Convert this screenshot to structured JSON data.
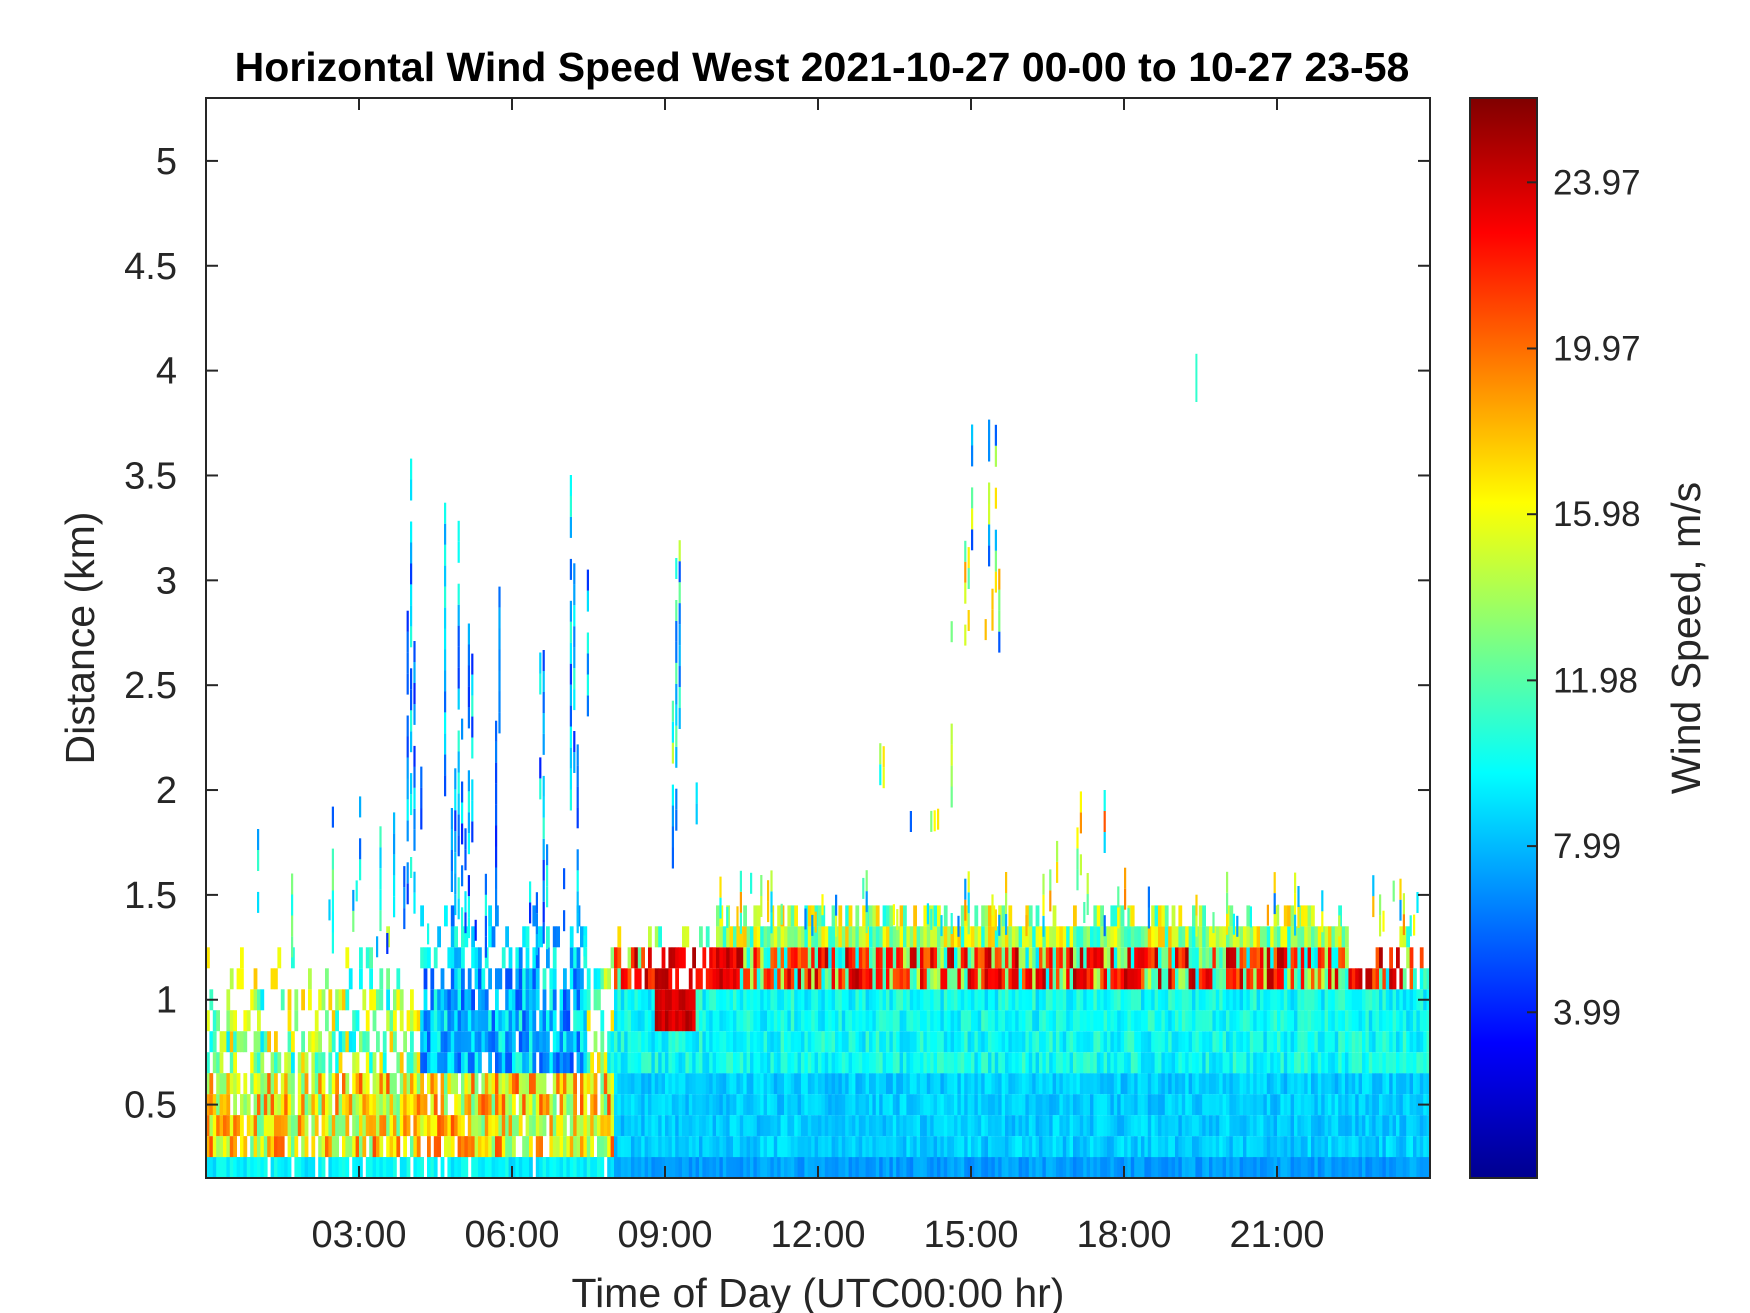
{
  "chart_data": {
    "type": "heatmap",
    "title": "Horizontal Wind Speed West 2021-10-27 00-00 to 10-27 23-58",
    "xlabel": "Time of Day (UTC00:00 hr)",
    "ylabel": "Distance (km)",
    "x_unit": "hours",
    "y_unit": "km",
    "xlim": [
      0,
      24
    ],
    "ylim": [
      0.15,
      5.3
    ],
    "x_ticks": [
      {
        "value": 3,
        "label": "03:00"
      },
      {
        "value": 6,
        "label": "06:00"
      },
      {
        "value": 9,
        "label": "09:00"
      },
      {
        "value": 12,
        "label": "12:00"
      },
      {
        "value": 15,
        "label": "15:00"
      },
      {
        "value": 18,
        "label": "18:00"
      },
      {
        "value": 21,
        "label": "21:00"
      }
    ],
    "y_ticks": [
      {
        "value": 0.5,
        "label": "0.5"
      },
      {
        "value": 1,
        "label": "1"
      },
      {
        "value": 1.5,
        "label": "1.5"
      },
      {
        "value": 2,
        "label": "2"
      },
      {
        "value": 2.5,
        "label": "2.5"
      },
      {
        "value": 3,
        "label": "3"
      },
      {
        "value": 3.5,
        "label": "3.5"
      },
      {
        "value": 4,
        "label": "4"
      },
      {
        "value": 4.5,
        "label": "4.5"
      },
      {
        "value": 5,
        "label": "5"
      }
    ],
    "colorbar": {
      "label": "Wind Speed, m/s",
      "colormap": "jet",
      "range": [
        0,
        26
      ],
      "ticks": [
        {
          "value": 3.99,
          "label": "3.99"
        },
        {
          "value": 7.99,
          "label": "7.99"
        },
        {
          "value": 11.98,
          "label": "11.98"
        },
        {
          "value": 15.98,
          "label": "15.98"
        },
        {
          "value": 19.97,
          "label": "19.97"
        },
        {
          "value": 23.97,
          "label": "23.97"
        }
      ]
    },
    "grid": false,
    "approximate_field": [
      {
        "time_hr": [
          0,
          8
        ],
        "distance_km": [
          0.15,
          0.25
        ],
        "wind_ms": 9.5
      },
      {
        "time_hr": [
          0,
          8
        ],
        "distance_km": [
          0.25,
          0.65
        ],
        "wind_ms": 16
      },
      {
        "time_hr": [
          0,
          8
        ],
        "distance_km": [
          0.65,
          1.3
        ],
        "wind_ms": 13
      },
      {
        "time_hr": [
          3.5,
          7.5
        ],
        "distance_km": [
          0.6,
          3.4
        ],
        "wind_ms": 7
      },
      {
        "time_hr": [
          8.8,
          9.6
        ],
        "distance_km": [
          0.8,
          1.0
        ],
        "wind_ms": 23
      },
      {
        "time_hr": [
          8,
          24
        ],
        "distance_km": [
          0.15,
          0.5
        ],
        "wind_ms": 8
      },
      {
        "time_hr": [
          8,
          24
        ],
        "distance_km": [
          0.5,
          1.0
        ],
        "wind_ms": 10
      },
      {
        "time_hr": [
          10,
          24
        ],
        "distance_km": [
          1.0,
          1.3
        ],
        "wind_ms": 23
      },
      {
        "time_hr": [
          10,
          24
        ],
        "distance_km": [
          1.3,
          1.5
        ],
        "wind_ms": 12
      },
      {
        "time_hr": [
          14.7,
          15.6
        ],
        "distance_km": [
          2.6,
          3.9
        ],
        "wind_ms": 13
      },
      {
        "time_hr": [
          8.8,
          9.6
        ],
        "distance_km": [
          2.2,
          3.4
        ],
        "wind_ms": 12
      },
      {
        "time_hr": [
          16.5,
          17.7
        ],
        "distance_km": [
          1.5,
          2.3
        ],
        "wind_ms": 18
      },
      {
        "time_hr": [
          19.4,
          19.45
        ],
        "distance_km": [
          3.8,
          4.1
        ],
        "wind_ms": 11
      }
    ]
  }
}
